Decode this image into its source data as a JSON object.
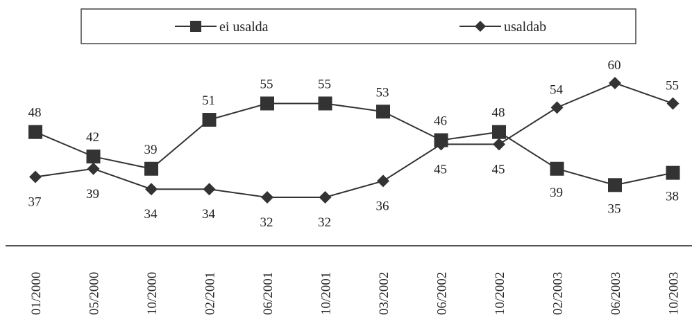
{
  "chart_data": {
    "type": "line",
    "categories": [
      "01/2000",
      "05/2000",
      "10/2000",
      "02/2001",
      "06/2001",
      "10/2001",
      "03/2002",
      "06/2002",
      "10/2002",
      "02/2003",
      "06/2003",
      "10/2003"
    ],
    "series": [
      {
        "name": "ei usalda",
        "marker": "square",
        "color": "#333333",
        "values": [
          48,
          42,
          39,
          51,
          55,
          55,
          53,
          46,
          48,
          39,
          35,
          38
        ],
        "labels": [
          "48",
          "42",
          "39",
          "51",
          "55",
          "55",
          "53",
          "46",
          "48",
          "39",
          "35",
          "38"
        ]
      },
      {
        "name": "usaldab",
        "marker": "diamond",
        "color": "#333333",
        "values": [
          37,
          39,
          34,
          34,
          32,
          32,
          36,
          45,
          45,
          54,
          60,
          55
        ],
        "labels": [
          "37",
          "39",
          "34",
          "34",
          "32",
          "32",
          "36",
          "45",
          "45",
          "54",
          "60",
          "55"
        ]
      }
    ],
    "title": "",
    "xlabel": "",
    "ylabel": "",
    "ylim": [
      30,
      62
    ],
    "grid": false,
    "legend": "top"
  }
}
